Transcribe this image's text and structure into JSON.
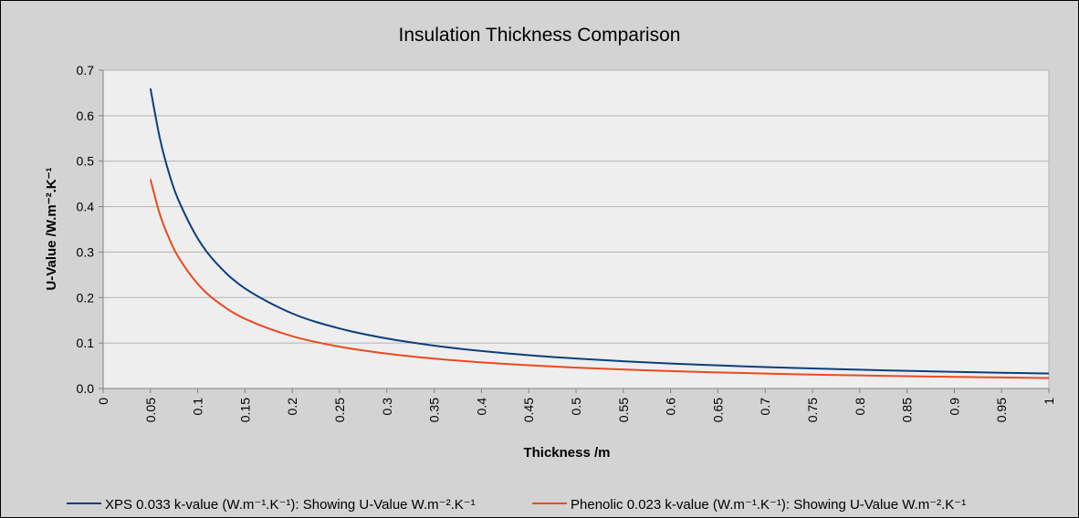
{
  "chart_data": {
    "type": "line",
    "title": "Insulation Thickness Comparison",
    "xlabel": "Thickness /m",
    "ylabel": "U-Value /W.m⁻².K⁻¹",
    "xlim": [
      0,
      1
    ],
    "ylim": [
      0,
      0.7
    ],
    "grid": true,
    "legend_position": "bottom",
    "x_ticks": [
      "0",
      "0.05",
      "0.1",
      "0.15",
      "0.2",
      "0.25",
      "0.3",
      "0.35",
      "0.4",
      "0.45",
      "0.5",
      "0.55",
      "0.6",
      "0.65",
      "0.7",
      "0.75",
      "0.8",
      "0.85",
      "0.9",
      "0.95",
      "1"
    ],
    "y_ticks": [
      "0.0",
      "0.1",
      "0.2",
      "0.3",
      "0.4",
      "0.5",
      "0.6",
      "0.7"
    ],
    "x": [
      0.05,
      0.06,
      0.07,
      0.08,
      0.1,
      0.12,
      0.15,
      0.2,
      0.25,
      0.3,
      0.35,
      0.4,
      0.45,
      0.5,
      0.55,
      0.6,
      0.65,
      0.7,
      0.75,
      0.8,
      0.85,
      0.9,
      0.95,
      1.0
    ],
    "series": [
      {
        "name": "XPS 0.033  k-value (W.m⁻¹.K⁻¹): Showing U-Value W.m⁻².K⁻¹",
        "color": "#0b3f7a",
        "values": [
          0.66,
          0.55,
          0.471,
          0.4125,
          0.33,
          0.275,
          0.22,
          0.165,
          0.132,
          0.11,
          0.0943,
          0.0825,
          0.0733,
          0.066,
          0.06,
          0.055,
          0.0508,
          0.0471,
          0.044,
          0.0413,
          0.0388,
          0.0367,
          0.0347,
          0.033
        ]
      },
      {
        "name": "Phenolic 0.023  k-value (W.m⁻¹.K⁻¹): Showing U-Value W.m⁻².K⁻¹",
        "color": "#ea4a1f",
        "values": [
          0.46,
          0.383,
          0.329,
          0.2875,
          0.23,
          0.1917,
          0.1533,
          0.115,
          0.092,
          0.0767,
          0.0657,
          0.0575,
          0.0511,
          0.046,
          0.0418,
          0.0383,
          0.0354,
          0.0329,
          0.0307,
          0.0288,
          0.0271,
          0.0256,
          0.0242,
          0.023
        ]
      }
    ]
  }
}
